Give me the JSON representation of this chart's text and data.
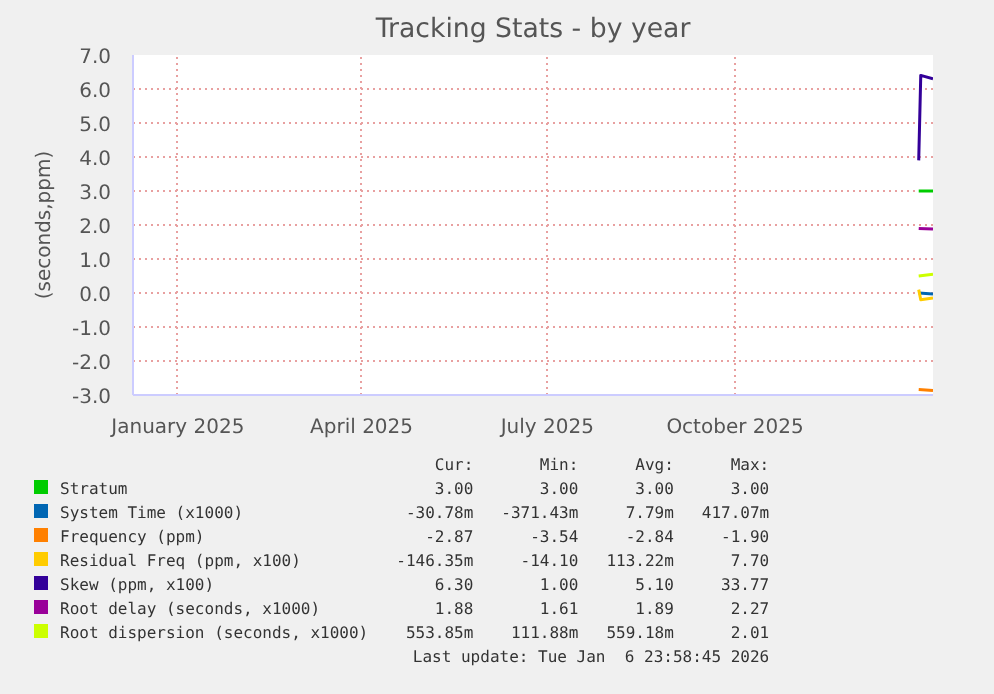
{
  "chart_data": {
    "type": "line",
    "title": "Tracking Stats - by year",
    "ylabel": "(seconds,ppm)",
    "xlim": [
      "2024-12-10",
      "2026-01-06"
    ],
    "xticks": [
      {
        "value": "2025-01-01",
        "label": "January 2025"
      },
      {
        "value": "2025-04-01",
        "label": "April 2025"
      },
      {
        "value": "2025-07-01",
        "label": "July 2025"
      },
      {
        "value": "2025-10-01",
        "label": "October 2025"
      }
    ],
    "ylim": [
      -3,
      7
    ],
    "yticks": [
      {
        "value": -3,
        "label": "-3.0"
      },
      {
        "value": -2,
        "label": "-2.0"
      },
      {
        "value": -1,
        "label": "-1.0"
      },
      {
        "value": 0,
        "label": "0.0"
      },
      {
        "value": 1,
        "label": "1.0"
      },
      {
        "value": 2,
        "label": "2.0"
      },
      {
        "value": 3,
        "label": "3.0"
      },
      {
        "value": 4,
        "label": "4.0"
      },
      {
        "value": 5,
        "label": "5.0"
      },
      {
        "value": 6,
        "label": "6.0"
      },
      {
        "value": 7,
        "label": "7.0"
      }
    ],
    "grid": true,
    "legend": "bottom",
    "marker": "none",
    "line_style": "solid",
    "series": [
      {
        "name": "Stratum",
        "color": "#00cc00",
        "x": [
          "2025-12-30",
          "2026-01-06"
        ],
        "values": [
          3.0,
          3.0
        ]
      },
      {
        "name": "System Time (x1000)",
        "color": "#0066b3",
        "x": [
          "2025-12-30",
          "2026-01-06"
        ],
        "values": [
          0.0,
          -0.03
        ]
      },
      {
        "name": "Frequency (ppm)",
        "color": "#ff8000",
        "x": [
          "2025-12-30",
          "2026-01-06"
        ],
        "values": [
          -2.84,
          -2.87
        ]
      },
      {
        "name": "Residual Freq (ppm, x100)",
        "color": "#ffcc00",
        "x": [
          "2025-12-30",
          "2025-12-31",
          "2026-01-06"
        ],
        "values": [
          0.1,
          -0.2,
          -0.15
        ]
      },
      {
        "name": "Skew (ppm, x100)",
        "color": "#330099",
        "x": [
          "2025-12-30",
          "2025-12-31",
          "2026-01-06"
        ],
        "values": [
          3.9,
          6.4,
          6.3
        ]
      },
      {
        "name": "Root delay (seconds, x1000)",
        "color": "#990099",
        "x": [
          "2025-12-30",
          "2026-01-06"
        ],
        "values": [
          1.9,
          1.88
        ]
      },
      {
        "name": "Root dispersion (seconds, x1000)",
        "color": "#ccff00",
        "x": [
          "2025-12-30",
          "2026-01-06"
        ],
        "values": [
          0.5,
          0.55
        ]
      }
    ],
    "annotations": [
      "Cur:",
      "Min:",
      "Avg:",
      "Max:",
      "3.00",
      "3.00",
      "3.00",
      "3.00",
      "-30.78m",
      "-371.43m",
      "7.79m",
      "417.07m",
      "-2.87",
      "-3.54",
      "-2.84",
      "-1.90",
      "-146.35m",
      "-14.10",
      "113.22m",
      "7.70",
      "6.30",
      "1.00",
      "5.10",
      "33.77",
      "1.88",
      "1.61",
      "1.89",
      "2.27",
      "553.85m",
      "111.88m",
      "559.18m",
      "2.01",
      "Last update: Tue Jan  6 23:58:45 2026"
    ]
  }
}
